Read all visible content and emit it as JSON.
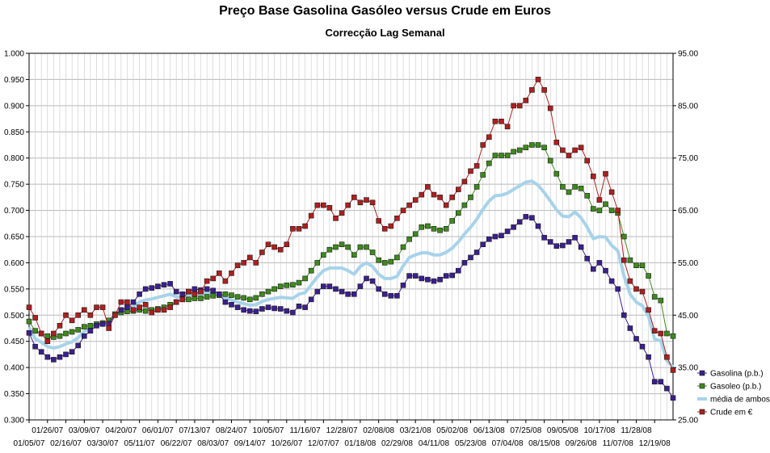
{
  "chart_data": {
    "type": "line",
    "title": "Preço Base Gasolina Gasóleo versus Crude em Euros",
    "subtitle": "Correcção Lag Semanal",
    "xlabel": "",
    "ylabel": "",
    "y_left": {
      "min": 0.3,
      "max": 1.0,
      "ticks": [
        "0.300",
        "0.350",
        "0.400",
        "0.450",
        "0.500",
        "0.550",
        "0.600",
        "0.650",
        "0.700",
        "0.750",
        "0.800",
        "0.850",
        "0.900",
        "0.950",
        "1.000"
      ]
    },
    "y_right": {
      "min": 25.0,
      "max": 95.0,
      "ticks": [
        "25.00",
        "35.00",
        "45.00",
        "55.00",
        "65.00",
        "75.00",
        "85.00",
        "95.00"
      ]
    },
    "x_tick_labels_upper": [
      "01/26/07",
      "03/09/07",
      "04/20/07",
      "06/01/07",
      "07/13/07",
      "08/24/07",
      "10/05/07",
      "11/16/07",
      "12/28/07",
      "02/08/08",
      "03/21/08",
      "05/02/08",
      "06/13/08",
      "07/25/08",
      "09/05/08",
      "10/17/08",
      "11/28/08"
    ],
    "x_tick_labels_lower": [
      "01/05/07",
      "02/16/07",
      "03/30/07",
      "05/11/07",
      "06/22/07",
      "08/03/07",
      "09/14/07",
      "10/26/07",
      "12/07/07",
      "01/18/08",
      "02/29/08",
      "04/11/08",
      "05/23/08",
      "07/04/08",
      "08/15/08",
      "09/26/08",
      "11/07/08",
      "12/19/08"
    ],
    "grid": true,
    "legend_position": "right",
    "series": [
      {
        "name": "Gasolina (p.b.)",
        "axis": "left",
        "color": "#3b1f8f",
        "marker": "square",
        "values": [
          0.466,
          0.44,
          0.43,
          0.42,
          0.415,
          0.42,
          0.425,
          0.43,
          0.442,
          0.46,
          0.47,
          0.48,
          0.483,
          0.484,
          0.5,
          0.51,
          0.515,
          0.525,
          0.54,
          0.55,
          0.552,
          0.555,
          0.558,
          0.56,
          0.545,
          0.54,
          0.545,
          0.55,
          0.548,
          0.55,
          0.547,
          0.54,
          0.525,
          0.52,
          0.515,
          0.51,
          0.508,
          0.507,
          0.512,
          0.515,
          0.513,
          0.512,
          0.508,
          0.505,
          0.517,
          0.515,
          0.53,
          0.545,
          0.555,
          0.555,
          0.55,
          0.545,
          0.54,
          0.54,
          0.555,
          0.57,
          0.565,
          0.55,
          0.54,
          0.537,
          0.537,
          0.557,
          0.575,
          0.575,
          0.57,
          0.568,
          0.565,
          0.568,
          0.575,
          0.576,
          0.585,
          0.6,
          0.61,
          0.62,
          0.635,
          0.645,
          0.65,
          0.652,
          0.66,
          0.668,
          0.678,
          0.688,
          0.686,
          0.67,
          0.648,
          0.64,
          0.632,
          0.633,
          0.64,
          0.648,
          0.63,
          0.608,
          0.588,
          0.6,
          0.585,
          0.565,
          0.55,
          0.5,
          0.475,
          0.455,
          0.44,
          0.42,
          0.373,
          0.373,
          0.36,
          0.342
        ]
      },
      {
        "name": "Gasoleo (p.b.)",
        "axis": "left",
        "color": "#3d8a1c",
        "marker": "square",
        "values": [
          0.488,
          0.47,
          0.465,
          0.46,
          0.458,
          0.46,
          0.465,
          0.468,
          0.472,
          0.478,
          0.48,
          0.483,
          0.485,
          0.49,
          0.502,
          0.505,
          0.507,
          0.508,
          0.51,
          0.508,
          0.51,
          0.512,
          0.515,
          0.52,
          0.525,
          0.53,
          0.53,
          0.532,
          0.532,
          0.535,
          0.537,
          0.538,
          0.54,
          0.538,
          0.535,
          0.533,
          0.53,
          0.533,
          0.54,
          0.545,
          0.55,
          0.555,
          0.557,
          0.558,
          0.562,
          0.57,
          0.585,
          0.6,
          0.615,
          0.625,
          0.63,
          0.635,
          0.63,
          0.615,
          0.63,
          0.63,
          0.62,
          0.605,
          0.6,
          0.602,
          0.61,
          0.63,
          0.645,
          0.655,
          0.668,
          0.67,
          0.665,
          0.662,
          0.665,
          0.68,
          0.695,
          0.71,
          0.725,
          0.745,
          0.768,
          0.79,
          0.805,
          0.805,
          0.805,
          0.812,
          0.815,
          0.82,
          0.825,
          0.825,
          0.82,
          0.795,
          0.77,
          0.745,
          0.735,
          0.745,
          0.742,
          0.728,
          0.703,
          0.7,
          0.712,
          0.7,
          0.695,
          0.65,
          0.605,
          0.595,
          0.595,
          0.575,
          0.535,
          0.528,
          0.465,
          0.46
        ]
      },
      {
        "name": "média de ambos",
        "axis": "left",
        "color": "#a7d3ea",
        "marker": "none",
        "values": [
          0.477,
          0.455,
          0.448,
          0.44,
          0.437,
          0.44,
          0.445,
          0.449,
          0.457,
          0.469,
          0.475,
          0.482,
          0.484,
          0.487,
          0.501,
          0.508,
          0.511,
          0.517,
          0.525,
          0.529,
          0.531,
          0.534,
          0.537,
          0.54,
          0.535,
          0.535,
          0.538,
          0.541,
          0.54,
          0.543,
          0.542,
          0.539,
          0.533,
          0.529,
          0.525,
          0.522,
          0.519,
          0.52,
          0.526,
          0.53,
          0.532,
          0.534,
          0.533,
          0.532,
          0.54,
          0.543,
          0.558,
          0.573,
          0.585,
          0.59,
          0.59,
          0.59,
          0.585,
          0.578,
          0.593,
          0.6,
          0.593,
          0.578,
          0.57,
          0.57,
          0.574,
          0.594,
          0.61,
          0.615,
          0.619,
          0.619,
          0.615,
          0.615,
          0.62,
          0.628,
          0.64,
          0.655,
          0.668,
          0.683,
          0.702,
          0.718,
          0.728,
          0.729,
          0.733,
          0.74,
          0.747,
          0.754,
          0.756,
          0.748,
          0.734,
          0.718,
          0.701,
          0.689,
          0.688,
          0.697,
          0.686,
          0.668,
          0.646,
          0.65,
          0.649,
          0.633,
          0.623,
          0.575,
          0.54,
          0.525,
          0.518,
          0.498,
          0.454,
          0.451,
          0.413,
          0.401
        ]
      },
      {
        "name": "Crude em €",
        "axis": "right",
        "color": "#b01e1e",
        "marker": "square",
        "values": [
          46.5,
          44.5,
          41.5,
          40.0,
          41.5,
          43.0,
          45.0,
          44.0,
          45.0,
          46.0,
          45.0,
          46.5,
          46.5,
          42.5,
          45.0,
          47.5,
          47.5,
          46.0,
          46.5,
          47.0,
          45.5,
          46.0,
          46.0,
          46.5,
          47.5,
          48.0,
          49.5,
          49.0,
          49.5,
          51.5,
          52.0,
          53.0,
          51.5,
          53.0,
          54.5,
          55.0,
          56.0,
          55.0,
          57.0,
          58.5,
          58.0,
          57.5,
          58.5,
          61.5,
          61.5,
          62.0,
          64.0,
          66.0,
          66.0,
          65.5,
          63.5,
          64.5,
          66.0,
          67.5,
          66.5,
          67.0,
          66.5,
          63.0,
          61.5,
          62.0,
          63.5,
          65.0,
          66.0,
          67.0,
          68.0,
          69.5,
          68.0,
          67.5,
          66.0,
          67.5,
          69.0,
          70.5,
          72.5,
          73.5,
          77.5,
          79.0,
          82.0,
          82.0,
          81.0,
          85.0,
          85.0,
          86.0,
          88.0,
          90.0,
          88.0,
          84.5,
          78.0,
          76.5,
          75.5,
          76.5,
          77.0,
          74.5,
          71.5,
          67.0,
          72.0,
          68.5,
          65.0,
          55.5,
          51.5,
          50.0,
          49.5,
          46.0,
          42.0,
          41.5,
          37.0,
          34.5
        ]
      }
    ]
  }
}
